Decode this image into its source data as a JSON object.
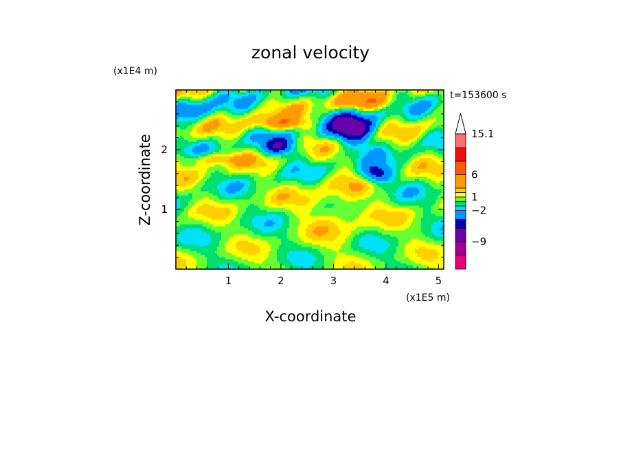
{
  "chart_data": {
    "type": "heatmap",
    "title": "zonal velocity",
    "xlabel": "X-coordinate",
    "ylabel": "Z-coordinate",
    "x_scale_label": "(x1E5 m)",
    "y_scale_label": "(x1E4 m)",
    "time_label": "t=153600 s",
    "xlim": [
      0,
      5.1
    ],
    "ylim": [
      0,
      3.0
    ],
    "x_ticks": [
      1,
      2,
      3,
      4,
      5
    ],
    "x_tick_labels": [
      "1",
      "2",
      "3",
      "4",
      "5"
    ],
    "y_ticks": [
      1,
      2
    ],
    "y_tick_labels": [
      "1",
      "2"
    ],
    "colorbar": {
      "levels": [
        -15.1,
        -12,
        -9,
        -6,
        -4,
        -2,
        -1,
        0,
        1,
        2,
        3,
        6,
        9,
        12,
        15.1
      ],
      "colors": [
        "#e6007e",
        "#a0008c",
        "#6a00a8",
        "#0000b4",
        "#0096ff",
        "#00e0ff",
        "#00e070",
        "#66ff33",
        "#ffff00",
        "#ffd000",
        "#ff9a00",
        "#ff5a00",
        "#ee1111",
        "#ff6f6f",
        "#ffc8c8"
      ],
      "tick_values": [
        15.1,
        6,
        1,
        -2,
        -9
      ],
      "tick_labels": [
        "15.1",
        "6",
        "1",
        "−2",
        "−9"
      ]
    },
    "notes": "Filled contour field of zonal velocity over X (0-5.1 x1E5 m) and Z (0-3 x1E4 m); dominated by yellow (0-1) and green (-1-0) banded structures tilted upward to the right, with blue/dark-blue negative cores near X=2-4, Z=1.5-2.5 and orange/red positive bands near Z=2.0-2.5."
  }
}
